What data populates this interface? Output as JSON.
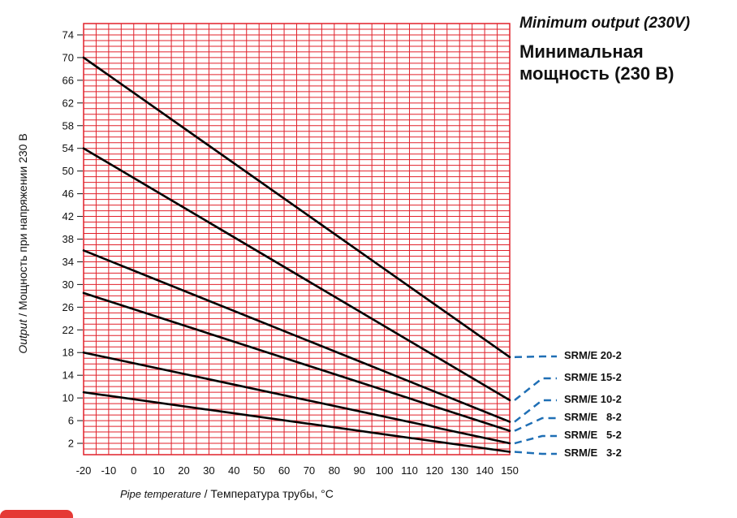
{
  "chart_data": {
    "type": "line",
    "title_en": "Minimum output (230V)",
    "title_ru": "Минимальная мощность (230 В)",
    "xlabel_en": "Pipe temperature",
    "xlabel_sep": "/",
    "xlabel_ru": "Температура трубы,",
    "xlabel_unit": "°C",
    "ylabel_en": "Output",
    "ylabel_sep": "/",
    "ylabel_ru": "Мощность при напряжении 230 В",
    "x_ticks": [
      -20,
      -10,
      0,
      10,
      20,
      30,
      40,
      50,
      60,
      70,
      80,
      90,
      100,
      110,
      120,
      130,
      140,
      150
    ],
    "y_ticks": [
      2,
      6,
      10,
      14,
      18,
      22,
      26,
      30,
      34,
      38,
      42,
      46,
      50,
      54,
      58,
      62,
      66,
      70,
      74
    ],
    "xlim": [
      -20,
      150
    ],
    "ylim": [
      0,
      76
    ],
    "grid": true,
    "grid_color": "#e0202a",
    "line_color": "#000000",
    "legend_color": "#1f6fb5",
    "series": [
      {
        "name": "SRM/E 20-2",
        "x": [
          -20,
          150
        ],
        "values": [
          70,
          17.2
        ]
      },
      {
        "name": "SRM/E 15-2",
        "x": [
          -20,
          150
        ],
        "values": [
          54,
          9.6
        ]
      },
      {
        "name": "SRM/E 10-2",
        "x": [
          -20,
          150
        ],
        "values": [
          36,
          5.8
        ]
      },
      {
        "name": "SRM/E   8-2",
        "x": [
          -20,
          150
        ],
        "values": [
          28.5,
          4.2
        ]
      },
      {
        "name": "SRM/E   5-2",
        "x": [
          -20,
          150
        ],
        "values": [
          18,
          2.0
        ]
      },
      {
        "name": "SRM/E   3-2",
        "x": [
          -20,
          150
        ],
        "values": [
          11,
          0.5
        ]
      }
    ]
  }
}
